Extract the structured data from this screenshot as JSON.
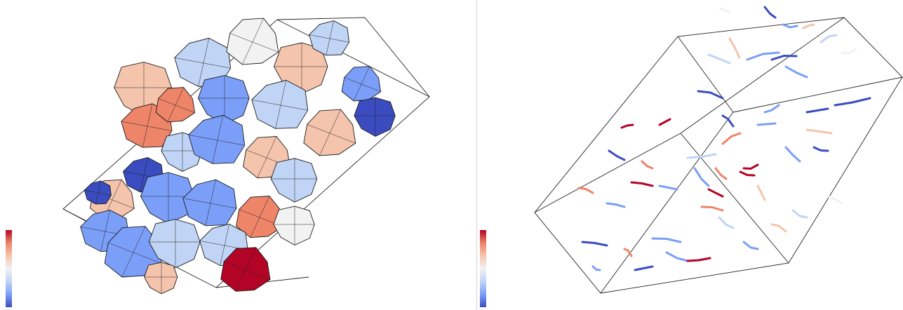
{
  "figure": {
    "panels": [
      {
        "id": "left",
        "kind": "polyhedral-grain-surface-mesh"
      },
      {
        "id": "right",
        "kind": "dislocation-line-segments"
      }
    ],
    "colormap": {
      "name": "coolwarm",
      "stops": [
        "#3b4cc0",
        "#7b9ff9",
        "#c0d4f5",
        "#f2f2f2",
        "#f5c4ac",
        "#ee8468",
        "#b40426"
      ]
    },
    "colorbar_labels": []
  }
}
